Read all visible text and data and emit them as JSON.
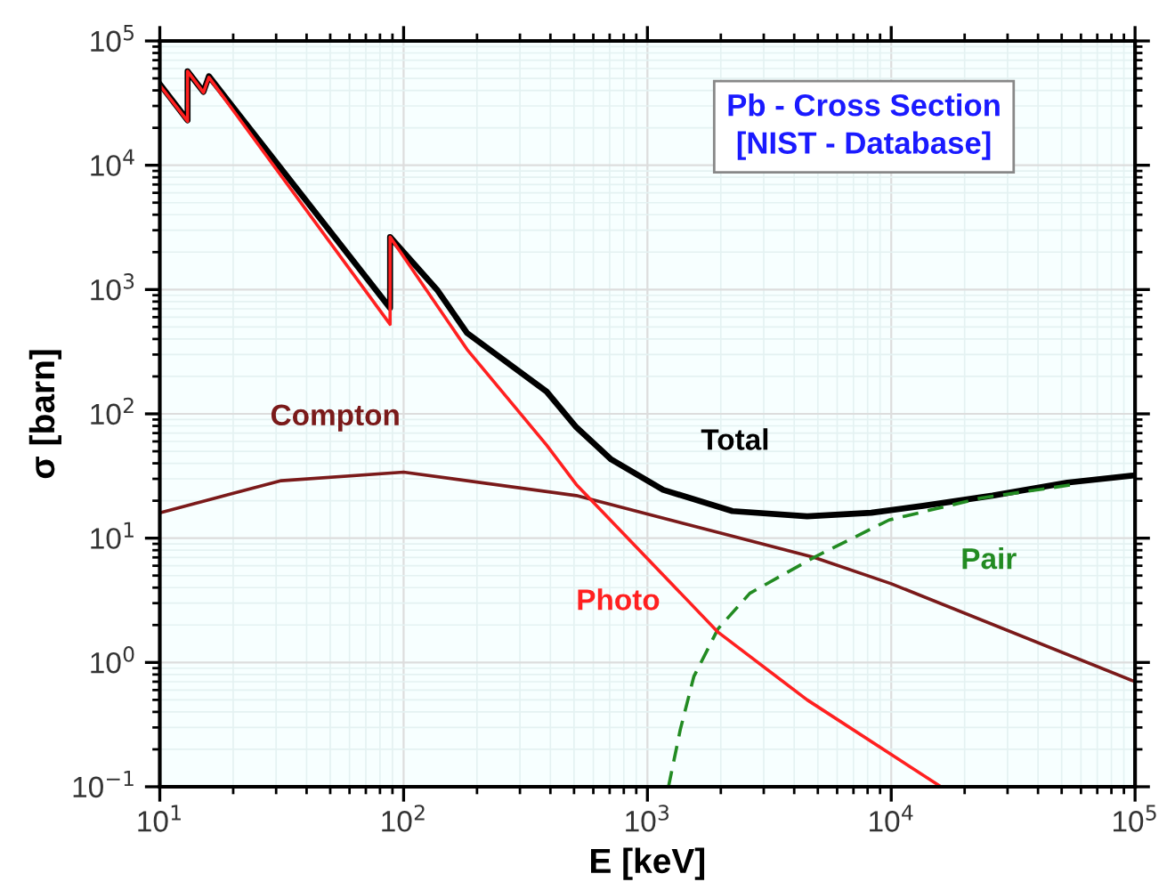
{
  "chart_data": {
    "type": "line",
    "title": "Pb - Cross Section\n[NIST - Database]",
    "xlabel": "E [keV]",
    "ylabel": "σ [barn]",
    "log": "xy",
    "grid": true,
    "legend": false,
    "line_style": "solid",
    "marker": "none",
    "xlim": [
      10,
      100000
    ],
    "ylim": [
      0.1,
      100000
    ],
    "xticks": [
      {
        "value": 10,
        "label": "10$^{1}$"
      },
      {
        "value": 100,
        "label": "10$^{2}$"
      },
      {
        "value": 1000,
        "label": "10$^{3}$"
      },
      {
        "value": 10000,
        "label": "10$^{4}$"
      },
      {
        "value": 100000,
        "label": "10$^{5}$"
      }
    ],
    "yticks": [
      {
        "value": 0.1,
        "label": "10$^{−1}$"
      },
      {
        "value": 1,
        "label": "10$^{0}$"
      },
      {
        "value": 10,
        "label": "10$^{1}$"
      },
      {
        "value": 100,
        "label": "10$^{2}$"
      },
      {
        "value": 1000,
        "label": "10$^{3}$"
      },
      {
        "value": 10000,
        "label": "10$^{4}$"
      },
      {
        "value": 100000,
        "label": "10$^{5}$"
      }
    ],
    "series": [
      {
        "name": "Compton",
        "color": "#7a1a1a",
        "x": [
          10,
          31.5,
          100,
          511,
          2000,
          4820,
          10000,
          100000
        ],
        "values": [
          16,
          29,
          34,
          22,
          11,
          7.0,
          4.3,
          0.7
        ]
      },
      {
        "name": "Total",
        "color": "#000000",
        "x": [
          10,
          13.0,
          13.0,
          15.1,
          15.9,
          88,
          88,
          138,
          182,
          386,
          511,
          710,
          1160,
          2230,
          4520,
          8280,
          13500,
          26000,
          52700,
          100000
        ],
        "values": [
          45000,
          23000,
          57000,
          39000,
          52000,
          710,
          2650,
          980,
          447,
          151,
          78,
          43,
          24.5,
          16.5,
          15,
          16,
          18.2,
          22,
          28,
          32
        ]
      },
      {
        "name": "Pair",
        "color": "#228b22",
        "line_style": "dashed",
        "x": [
          1220,
          1365,
          1550,
          1950,
          2630,
          4820,
          9800,
          23200,
          56000
        ],
        "values": [
          0.1,
          0.29,
          0.77,
          1.87,
          3.6,
          7.0,
          14,
          21,
          27
        ]
      },
      {
        "name": "Photo",
        "color": "#ff2020",
        "x": [
          10,
          13.0,
          13.0,
          15.1,
          15.9,
          88,
          88,
          182,
          386,
          511,
          1950,
          4520,
          16000
        ],
        "values": [
          44000,
          22600,
          57000,
          38500,
          51000,
          525,
          2650,
          330,
          56,
          27,
          1.75,
          0.5,
          0.1
        ]
      }
    ]
  }
}
